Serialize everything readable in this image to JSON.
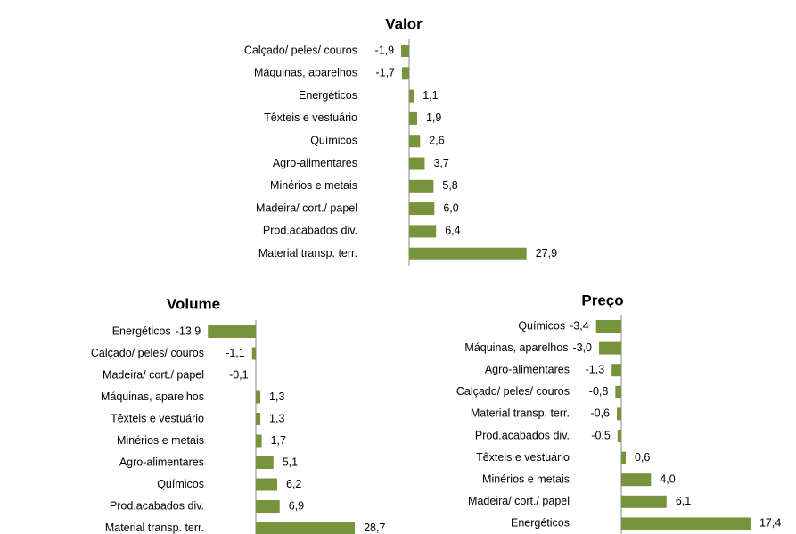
{
  "chart_data": [
    {
      "type": "bar",
      "orientation": "horizontal",
      "title": "Valor",
      "color": "#77933c",
      "categories": [
        "Calçado/ peles/ couros",
        "Máquinas, aparelhos",
        "Energéticos",
        "Têxteis e vestuário",
        "Químicos",
        "Agro-alimentares",
        "Minérios e metais",
        "Madeira/ cort./ papel",
        "Prod.acabados div.",
        "Material transp. terr."
      ],
      "values": [
        -1.9,
        -1.7,
        1.1,
        1.9,
        2.6,
        3.7,
        5.8,
        6.0,
        6.4,
        27.9
      ],
      "value_labels": [
        "-1,9",
        "-1,7",
        "1,1",
        "1,9",
        "2,6",
        "3,7",
        "5,8",
        "6,0",
        "6,4",
        "27,9"
      ]
    },
    {
      "type": "bar",
      "orientation": "horizontal",
      "title": "Volume",
      "color": "#77933c",
      "categories": [
        "Energéticos",
        "Calçado/ peles/ couros",
        "Madeira/ cort./ papel",
        "Máquinas, aparelhos",
        "Têxteis e vestuário",
        "Minérios e metais",
        "Agro-alimentares",
        "Químicos",
        "Prod.acabados div.",
        "Material transp. terr."
      ],
      "values": [
        -13.9,
        -1.1,
        -0.1,
        1.3,
        1.3,
        1.7,
        5.1,
        6.2,
        6.9,
        28.7
      ],
      "value_labels": [
        "-13,9",
        "-1,1",
        "-0,1",
        "1,3",
        "1,3",
        "1,7",
        "5,1",
        "6,2",
        "6,9",
        "28,7"
      ]
    },
    {
      "type": "bar",
      "orientation": "horizontal",
      "title": "Preço",
      "color": "#77933c",
      "categories": [
        "Químicos",
        "Máquinas, aparelhos",
        "Agro-alimentares",
        "Calçado/ peles/ couros",
        "Material transp. terr.",
        "Prod.acabados div.",
        "Têxteis e vestuário",
        "Minérios e metais",
        "Madeira/ cort./ papel",
        "Energéticos"
      ],
      "values": [
        -3.4,
        -3.0,
        -1.3,
        -0.8,
        -0.6,
        -0.5,
        0.6,
        4.0,
        6.1,
        17.4
      ],
      "value_labels": [
        "-3,4",
        "-3,0",
        "-1,3",
        "-0,8",
        "-0,6",
        "-0,5",
        "0,6",
        "4,0",
        "6,1",
        "17,4"
      ]
    }
  ]
}
